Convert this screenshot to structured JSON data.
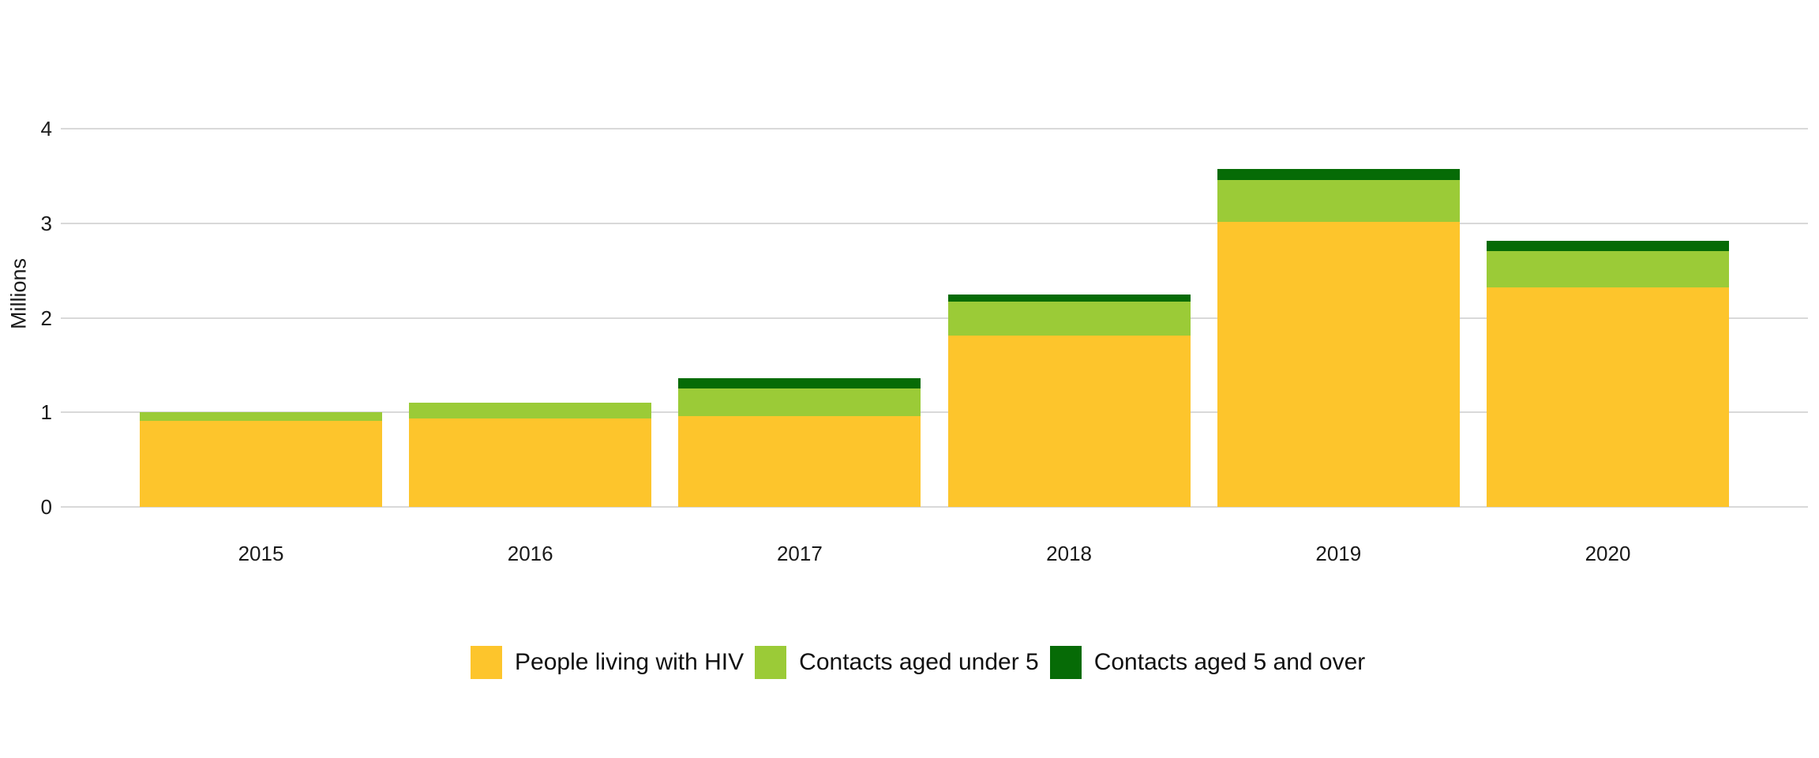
{
  "chart_data": {
    "type": "bar",
    "stacked": true,
    "title": "",
    "ylabel": "Millions",
    "xlabel": "",
    "categories": [
      "2015",
      "2016",
      "2017",
      "2018",
      "2019",
      "2020"
    ],
    "series": [
      {
        "name": "People living with HIV",
        "color": "#FDC52C",
        "values": [
          0.91,
          0.94,
          0.96,
          1.81,
          3.02,
          2.32
        ]
      },
      {
        "name": "Contacts aged under 5",
        "color": "#9BCB37",
        "values": [
          0.09,
          0.16,
          0.29,
          0.36,
          0.44,
          0.39
        ]
      },
      {
        "name": "Contacts aged 5 and over",
        "color": "#066B06",
        "values": [
          0.0,
          0.0,
          0.11,
          0.08,
          0.12,
          0.11
        ]
      }
    ],
    "y_ticks": [
      "0",
      "1",
      "2",
      "3",
      "4"
    ],
    "ylim": [
      0,
      4.35
    ],
    "grid": true,
    "legend_position": "bottom",
    "colors": {
      "gridline": "#d9d9d9",
      "text": "#1a1a1a",
      "background": "#ffffff"
    }
  }
}
